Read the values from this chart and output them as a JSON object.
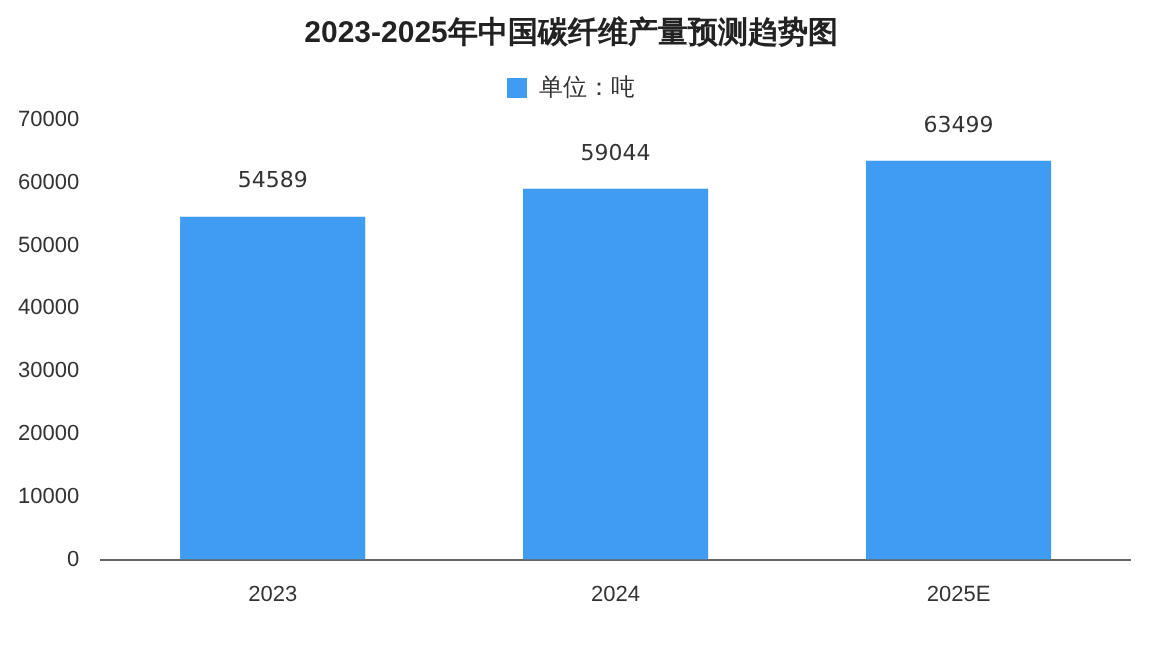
{
  "chart_data": {
    "type": "bar",
    "title": "2023-2025年中国碳纤维产量预测趋势图",
    "categories": [
      "2023",
      "2024",
      "2025E"
    ],
    "series": [
      {
        "name": "单位：吨",
        "color": "#3f9cf0",
        "values": [
          54589,
          59044,
          63499
        ]
      }
    ],
    "ylim": [
      0,
      70000
    ],
    "yticks": [
      0,
      10000,
      20000,
      30000,
      40000,
      50000,
      60000,
      70000
    ],
    "grid": false,
    "legend": "top",
    "data_labels": true
  }
}
